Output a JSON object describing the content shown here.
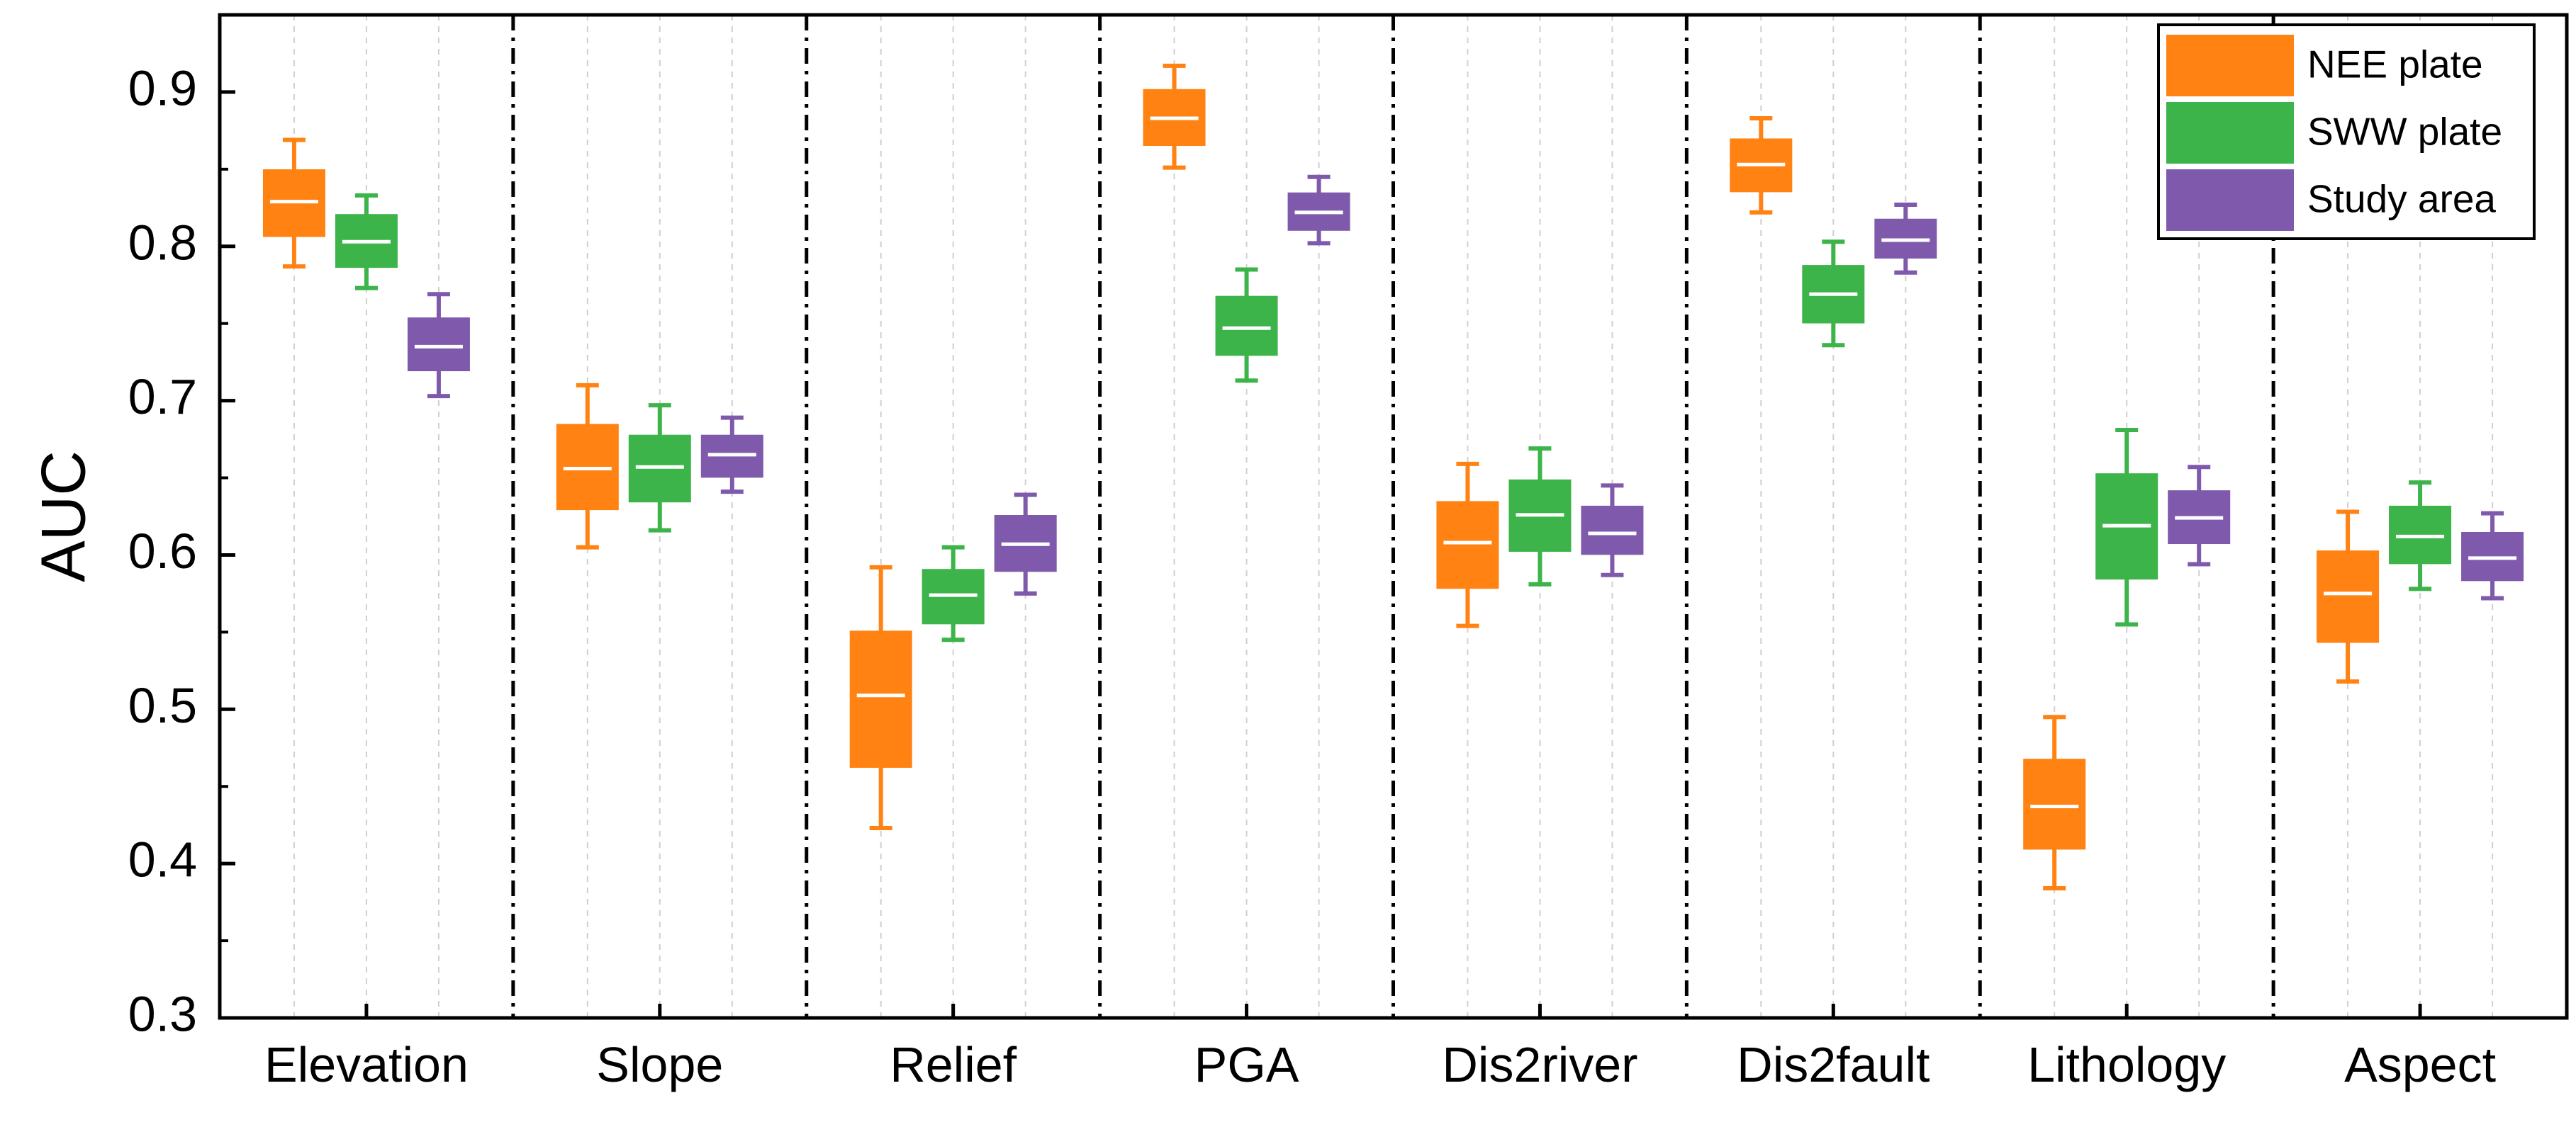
{
  "chart_data": {
    "type": "box",
    "title": "",
    "xlabel": "",
    "ylabel": "AUC",
    "ylim": [
      0.3,
      0.95
    ],
    "yticks": [
      "0.3",
      "0.4",
      "0.5",
      "0.6",
      "0.7",
      "0.8",
      "0.9"
    ],
    "categories": [
      "Elevation",
      "Slope",
      "Relief",
      "PGA",
      "Dis2river",
      "Dis2fault",
      "Lithology",
      "Aspect"
    ],
    "legend_position": "top-right",
    "series": [
      {
        "name": "NEE plate",
        "color": "#FF8213",
        "boxes": [
          {
            "min": 0.787,
            "q1": 0.807,
            "median": 0.829,
            "q3": 0.849,
            "max": 0.869
          },
          {
            "min": 0.605,
            "q1": 0.63,
            "median": 0.656,
            "q3": 0.684,
            "max": 0.71
          },
          {
            "min": 0.423,
            "q1": 0.463,
            "median": 0.509,
            "q3": 0.55,
            "max": 0.592
          },
          {
            "min": 0.851,
            "q1": 0.866,
            "median": 0.883,
            "q3": 0.901,
            "max": 0.917
          },
          {
            "min": 0.554,
            "q1": 0.579,
            "median": 0.608,
            "q3": 0.634,
            "max": 0.659
          },
          {
            "min": 0.822,
            "q1": 0.836,
            "median": 0.853,
            "q3": 0.869,
            "max": 0.883
          },
          {
            "min": 0.384,
            "q1": 0.41,
            "median": 0.437,
            "q3": 0.467,
            "max": 0.495
          },
          {
            "min": 0.518,
            "q1": 0.544,
            "median": 0.575,
            "q3": 0.602,
            "max": 0.628
          }
        ]
      },
      {
        "name": "SWW plate",
        "color": "#3CB44A",
        "boxes": [
          {
            "min": 0.773,
            "q1": 0.787,
            "median": 0.803,
            "q3": 0.82,
            "max": 0.833
          },
          {
            "min": 0.616,
            "q1": 0.635,
            "median": 0.657,
            "q3": 0.677,
            "max": 0.697
          },
          {
            "min": 0.545,
            "q1": 0.556,
            "median": 0.574,
            "q3": 0.59,
            "max": 0.605
          },
          {
            "min": 0.713,
            "q1": 0.73,
            "median": 0.747,
            "q3": 0.767,
            "max": 0.785
          },
          {
            "min": 0.581,
            "q1": 0.603,
            "median": 0.626,
            "q3": 0.648,
            "max": 0.669
          },
          {
            "min": 0.736,
            "q1": 0.751,
            "median": 0.769,
            "q3": 0.787,
            "max": 0.803
          },
          {
            "min": 0.555,
            "q1": 0.585,
            "median": 0.619,
            "q3": 0.652,
            "max": 0.681
          },
          {
            "min": 0.578,
            "q1": 0.595,
            "median": 0.612,
            "q3": 0.631,
            "max": 0.647
          }
        ]
      },
      {
        "name": "Study area",
        "color": "#7F5AAC",
        "boxes": [
          {
            "min": 0.703,
            "q1": 0.72,
            "median": 0.735,
            "q3": 0.753,
            "max": 0.769
          },
          {
            "min": 0.641,
            "q1": 0.651,
            "median": 0.665,
            "q3": 0.677,
            "max": 0.689
          },
          {
            "min": 0.575,
            "q1": 0.59,
            "median": 0.607,
            "q3": 0.625,
            "max": 0.639
          },
          {
            "min": 0.802,
            "q1": 0.811,
            "median": 0.822,
            "q3": 0.834,
            "max": 0.845
          },
          {
            "min": 0.587,
            "q1": 0.601,
            "median": 0.614,
            "q3": 0.631,
            "max": 0.645
          },
          {
            "min": 0.783,
            "q1": 0.793,
            "median": 0.804,
            "q3": 0.817,
            "max": 0.827
          },
          {
            "min": 0.594,
            "q1": 0.608,
            "median": 0.624,
            "q3": 0.641,
            "max": 0.657
          },
          {
            "min": 0.572,
            "q1": 0.584,
            "median": 0.598,
            "q3": 0.614,
            "max": 0.627
          }
        ]
      }
    ]
  }
}
